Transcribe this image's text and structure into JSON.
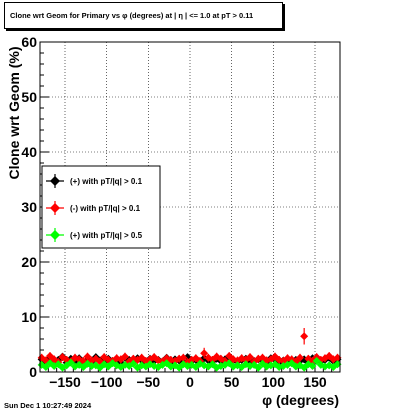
{
  "title": "Clone wrt Geom for Primary vs φ (degrees) at |  η | <= 1.0 at pT > 0.11",
  "footer": "Sun Dec  1 10:27:49 2024",
  "colors": {
    "black_series": "#000000",
    "red_series": "#ff0000",
    "green_series": "#00ff00"
  },
  "chart_data": {
    "type": "scatter",
    "xlabel": "φ (degrees)",
    "ylabel": "Clone wrt Geom (%)",
    "xlim": [
      -180,
      180
    ],
    "ylim": [
      0,
      60
    ],
    "xticks": [
      -150,
      -100,
      -50,
      0,
      50,
      100,
      150
    ],
    "xtick_labels": [
      "−150",
      "−100",
      "−50",
      "0",
      "50",
      "100",
      "150"
    ],
    "yticks": [
      0,
      10,
      20,
      30,
      40,
      50,
      60
    ],
    "grid": true,
    "legend_position": "left",
    "series": [
      {
        "name": "(+) with pT/|q| > 0.1",
        "color": "#000000",
        "x": [
          -178,
          -173,
          -168,
          -163,
          -158,
          -153,
          -148,
          -143,
          -138,
          -133,
          -128,
          -123,
          -118,
          -113,
          -108,
          -103,
          -98,
          -93,
          -88,
          -83,
          -78,
          -73,
          -68,
          -63,
          -58,
          -53,
          -48,
          -43,
          -38,
          -33,
          -28,
          -23,
          -18,
          -13,
          -8,
          -3,
          2,
          7,
          12,
          17,
          22,
          27,
          32,
          37,
          42,
          47,
          52,
          57,
          62,
          67,
          72,
          77,
          82,
          87,
          92,
          97,
          102,
          107,
          112,
          117,
          122,
          127,
          132,
          137,
          142,
          147,
          152,
          157,
          162,
          167,
          172,
          177
        ],
        "y": [
          2.3,
          1.8,
          2.6,
          1.9,
          2.2,
          2.8,
          1.7,
          2.4,
          2.0,
          2.5,
          1.6,
          2.2,
          1.9,
          2.7,
          2.1,
          1.8,
          2.4,
          2.0,
          2.3,
          1.7,
          2.6,
          2.2,
          1.9,
          2.5,
          2.1,
          1.8,
          2.4,
          2.0,
          2.2,
          1.9,
          2.6,
          1.7,
          2.3,
          2.1,
          1.9,
          2.7,
          2.0,
          2.2,
          1.8,
          2.5,
          2.1,
          1.9,
          2.4,
          2.0,
          2.3,
          2.8,
          2.1,
          1.9,
          2.2,
          2.4,
          1.8,
          2.0,
          2.3,
          2.1,
          1.9,
          2.5,
          2.2,
          1.8,
          2.1,
          2.4,
          1.9,
          2.2,
          2.0,
          2.3,
          1.7,
          2.5,
          2.1,
          1.9,
          2.2,
          2.6,
          2.0,
          2.3
        ],
        "err": [
          0.6,
          0.6,
          0.6,
          0.6,
          0.6,
          0.6,
          0.6,
          0.6,
          0.6,
          0.6,
          0.6,
          0.6,
          0.6,
          0.6,
          0.6,
          0.6,
          0.6,
          0.6,
          0.6,
          0.6,
          0.6,
          0.6,
          0.6,
          0.6,
          0.6,
          0.6,
          0.6,
          0.6,
          0.6,
          0.6,
          0.6,
          0.6,
          0.6,
          0.6,
          0.6,
          0.6,
          0.6,
          0.6,
          0.6,
          0.6,
          0.6,
          0.6,
          0.6,
          0.6,
          0.6,
          0.6,
          0.6,
          0.6,
          0.6,
          0.6,
          0.6,
          0.6,
          0.6,
          0.6,
          0.6,
          0.6,
          0.6,
          0.6,
          0.6,
          0.6,
          0.6,
          0.6,
          0.6,
          0.6,
          0.6,
          0.6,
          0.6,
          0.6,
          0.6,
          0.6,
          0.6,
          0.6
        ]
      },
      {
        "name": "(-) with pT/|q| > 0.1",
        "color": "#ff0000",
        "x": [
          -178,
          -173,
          -168,
          -163,
          -158,
          -153,
          -148,
          -143,
          -138,
          -133,
          -128,
          -123,
          -118,
          -113,
          -108,
          -103,
          -98,
          -93,
          -88,
          -83,
          -78,
          -73,
          -68,
          -63,
          -58,
          -53,
          -48,
          -43,
          -38,
          -33,
          -28,
          -23,
          -18,
          -13,
          -8,
          -3,
          2,
          7,
          12,
          17,
          22,
          27,
          32,
          37,
          42,
          47,
          52,
          57,
          62,
          67,
          72,
          77,
          82,
          87,
          92,
          97,
          102,
          107,
          112,
          117,
          122,
          127,
          132,
          137,
          142,
          147,
          152,
          157,
          162,
          167,
          172,
          177
        ],
        "y": [
          2.6,
          2.1,
          2.9,
          2.3,
          1.8,
          2.7,
          2.2,
          1.9,
          2.6,
          2.3,
          2.0,
          2.8,
          2.1,
          2.4,
          1.9,
          2.7,
          2.2,
          2.0,
          2.5,
          2.3,
          2.8,
          1.9,
          2.4,
          2.2,
          2.6,
          2.0,
          2.3,
          2.7,
          2.1,
          1.9,
          2.5,
          2.2,
          2.0,
          2.4,
          2.6,
          1.8,
          2.2,
          2.5,
          2.0,
          3.4,
          2.6,
          2.2,
          2.8,
          2.4,
          2.0,
          2.9,
          2.3,
          2.1,
          2.5,
          2.2,
          2.7,
          1.9,
          2.4,
          2.6,
          2.1,
          2.3,
          2.8,
          2.2,
          2.0,
          2.5,
          2.3,
          1.9,
          2.6,
          6.5,
          2.4,
          2.0,
          2.7,
          2.2,
          2.5,
          2.9,
          2.3,
          2.6
        ],
        "err": [
          0.7,
          0.7,
          0.7,
          0.7,
          0.7,
          0.7,
          0.7,
          0.7,
          0.7,
          0.7,
          0.7,
          0.7,
          0.7,
          0.7,
          0.7,
          0.7,
          0.7,
          0.7,
          0.7,
          0.7,
          0.7,
          0.7,
          0.7,
          0.7,
          0.7,
          0.7,
          0.7,
          0.7,
          0.7,
          0.7,
          0.7,
          0.7,
          0.7,
          0.7,
          0.7,
          0.7,
          0.7,
          0.7,
          0.7,
          1.0,
          0.7,
          0.7,
          0.7,
          0.7,
          0.7,
          0.7,
          0.7,
          0.7,
          0.7,
          0.7,
          0.7,
          0.7,
          0.7,
          0.7,
          0.7,
          0.7,
          0.7,
          0.7,
          0.7,
          0.7,
          0.7,
          0.7,
          0.7,
          1.5,
          0.7,
          0.7,
          0.7,
          0.7,
          0.7,
          0.7,
          0.7,
          0.7
        ]
      },
      {
        "name": "(+) with pT/|q| > 0.5",
        "color": "#00ff00",
        "x": [
          -178,
          -173,
          -168,
          -163,
          -158,
          -153,
          -148,
          -143,
          -138,
          -133,
          -128,
          -123,
          -118,
          -113,
          -108,
          -103,
          -98,
          -93,
          -88,
          -83,
          -78,
          -73,
          -68,
          -63,
          -58,
          -53,
          -48,
          -43,
          -38,
          -33,
          -28,
          -23,
          -18,
          -13,
          -8,
          -3,
          2,
          7,
          12,
          17,
          22,
          27,
          32,
          37,
          42,
          47,
          52,
          57,
          62,
          67,
          72,
          77,
          82,
          87,
          92,
          97,
          102,
          107,
          112,
          117,
          122,
          127,
          132,
          137,
          142,
          147,
          152,
          157,
          162,
          167,
          172,
          177
        ],
        "y": [
          1.3,
          0.9,
          1.6,
          1.1,
          1.4,
          0.8,
          1.2,
          1.7,
          1.0,
          1.3,
          0.9,
          1.5,
          1.1,
          1.2,
          0.8,
          1.4,
          1.0,
          1.6,
          1.2,
          0.9,
          1.3,
          1.1,
          1.5,
          0.8,
          1.2,
          1.0,
          1.4,
          1.1,
          0.9,
          1.3,
          1.6,
          1.0,
          1.2,
          0.8,
          1.4,
          1.1,
          1.3,
          0.9,
          1.5,
          1.2,
          1.0,
          1.4,
          0.8,
          1.1,
          1.3,
          1.6,
          1.0,
          1.2,
          0.9,
          1.4,
          1.1,
          1.3,
          0.8,
          1.5,
          1.0,
          1.2,
          1.4,
          0.9,
          1.1,
          1.3,
          1.6,
          1.0,
          1.2,
          0.8,
          1.4,
          1.1,
          2.0,
          1.3,
          1.0,
          1.2,
          0.9,
          1.4
        ],
        "err": [
          0.5,
          0.5,
          0.5,
          0.5,
          0.5,
          0.5,
          0.5,
          0.5,
          0.5,
          0.5,
          0.5,
          0.5,
          0.5,
          0.5,
          0.5,
          0.5,
          0.5,
          0.5,
          0.5,
          0.5,
          0.5,
          0.5,
          0.5,
          0.5,
          0.5,
          0.5,
          0.5,
          0.5,
          0.5,
          0.5,
          0.5,
          0.5,
          0.5,
          0.5,
          0.5,
          0.5,
          0.5,
          0.5,
          0.5,
          0.5,
          0.5,
          0.5,
          0.5,
          0.5,
          0.5,
          0.5,
          0.5,
          0.5,
          0.5,
          0.5,
          0.5,
          0.5,
          0.5,
          0.5,
          0.5,
          0.5,
          0.5,
          0.5,
          0.5,
          0.5,
          0.5,
          0.5,
          0.5,
          0.5,
          0.5,
          0.5,
          0.5,
          0.5,
          0.5,
          0.5,
          0.5,
          0.5
        ]
      }
    ]
  }
}
